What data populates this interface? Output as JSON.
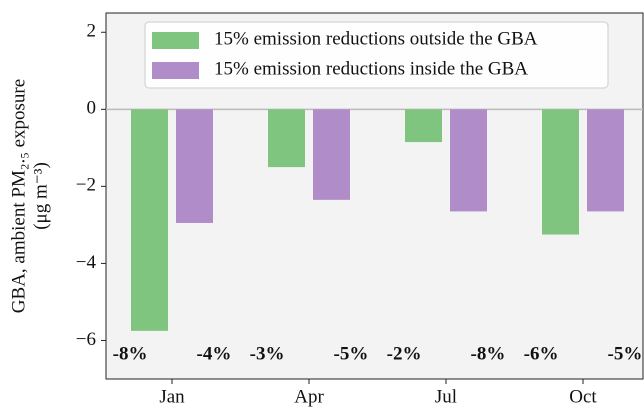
{
  "chart_data": {
    "type": "bar",
    "y_label": [
      "GBA, ambient PM₂.₅ exposure",
      "(μg m⁻³)"
    ],
    "categories": [
      "Jan",
      "Apr",
      "Jul",
      "Oct"
    ],
    "series": [
      {
        "name": "15% emission reductions outside the GBA",
        "color": "#7fc47f",
        "values": [
          -5.75,
          -1.5,
          -0.85,
          -3.25
        ],
        "annotations": [
          "-8%",
          "-3%",
          "-2%",
          "-6%"
        ]
      },
      {
        "name": "15% emission reductions inside the GBA",
        "color": "#b08cc8",
        "values": [
          -2.95,
          -2.35,
          -2.65,
          -2.65
        ],
        "annotations": [
          "-4%",
          "-5%",
          "-8%",
          "-5%"
        ]
      }
    ],
    "ylim": [
      -7,
      2.5
    ],
    "yticks": [
      {
        "value": -6,
        "label": "−6"
      },
      {
        "value": -4,
        "label": "−4"
      },
      {
        "value": -2,
        "label": "−2"
      },
      0,
      2
    ],
    "zero_line": true
  }
}
